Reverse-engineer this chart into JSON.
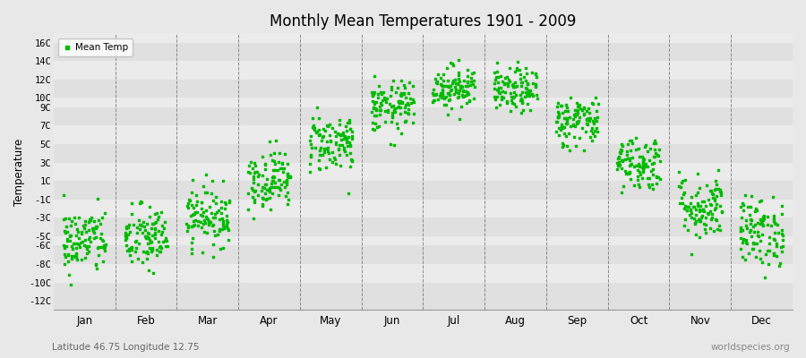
{
  "title": "Monthly Mean Temperatures 1901 - 2009",
  "ylabel": "Temperature",
  "subtitle": "Latitude 46.75 Longitude 12.75",
  "watermark": "worldspecies.org",
  "dot_color": "#00bb00",
  "bg_color": "#e8e8e8",
  "band_colors": [
    "#e0e0e0",
    "#ebebeb"
  ],
  "legend_label": "Mean Temp",
  "months": [
    "Jan",
    "Feb",
    "Mar",
    "Apr",
    "May",
    "Jun",
    "Jul",
    "Aug",
    "Sep",
    "Oct",
    "Nov",
    "Dec"
  ],
  "yticks": [
    -12,
    -10,
    -8,
    -6,
    -5,
    -3,
    -1,
    1,
    3,
    5,
    7,
    9,
    10,
    12,
    14,
    16
  ],
  "ytick_labels": [
    "-12C",
    "-10C",
    "-8C",
    "-6C",
    "-5C",
    "-3C",
    "-1C",
    "1C",
    "3C",
    "5C",
    "7C",
    "9C",
    "10C",
    "12C",
    "14C",
    "16C"
  ],
  "ylim": [
    -13,
    17
  ],
  "num_years": 109,
  "mean_temps": [
    -5.5,
    -5.2,
    -2.8,
    1.2,
    5.2,
    9.0,
    11.2,
    10.8,
    7.5,
    3.0,
    -1.8,
    -4.5
  ],
  "std_temps": [
    1.8,
    1.8,
    1.6,
    1.6,
    1.6,
    1.4,
    1.2,
    1.2,
    1.4,
    1.5,
    1.8,
    1.9
  ],
  "marker_size": 3
}
